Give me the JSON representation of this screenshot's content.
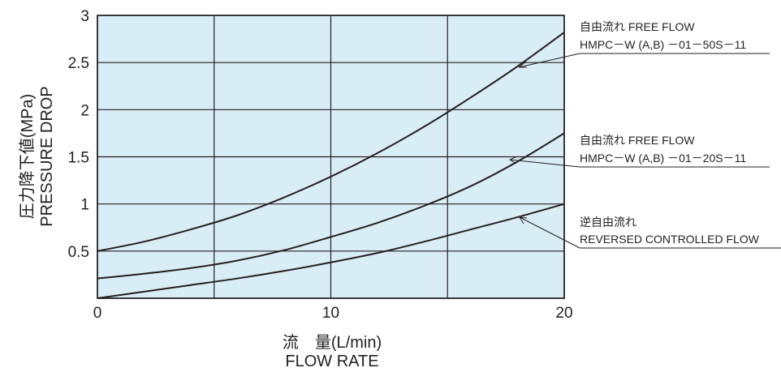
{
  "chart_data": {
    "type": "line",
    "x_label": "流　量(L/min)",
    "x_label_en": "FLOW RATE",
    "y_label": "圧力降下値(MPa)",
    "y_label_en": "PRESSURE DROP",
    "xlim": [
      0,
      20
    ],
    "ylim": [
      0,
      3
    ],
    "x_ticks": [
      "0",
      "10",
      "20"
    ],
    "x_tick_values": [
      0,
      10,
      20
    ],
    "y_ticks": [
      "0.5",
      "1",
      "1.5",
      "2",
      "2.5",
      "3"
    ],
    "y_tick_values": [
      0.5,
      1,
      1.5,
      2,
      2.5,
      3
    ],
    "x_gridlines": [
      5,
      10,
      15
    ],
    "y_gridlines": [
      0.5,
      1,
      1.5,
      2,
      2.5
    ],
    "grid": true,
    "plot_background": "#d9edf7",
    "line_color": "#231f20",
    "series": [
      {
        "label_line1": "自由流れ FREE FLOW",
        "label_line2": "HMPC－W (A,B) －01－50S－11",
        "x": [
          0,
          2,
          4,
          6,
          8,
          10,
          12,
          14,
          16,
          18,
          20
        ],
        "values": [
          0.5,
          0.6,
          0.73,
          0.88,
          1.07,
          1.29,
          1.54,
          1.82,
          2.13,
          2.46,
          2.82
        ]
      },
      {
        "label_line1": "自由流れ FREE FLOW",
        "label_line2": "HMPC－W (A,B) －01－20S－11",
        "x": [
          0,
          2,
          4,
          6,
          8,
          10,
          12,
          14,
          16,
          18,
          20
        ],
        "values": [
          0.21,
          0.26,
          0.32,
          0.4,
          0.51,
          0.65,
          0.8,
          0.98,
          1.19,
          1.45,
          1.75
        ]
      },
      {
        "label_line1": "逆自由流れ",
        "label_line2": "REVERSED CONTROLLED FLOW",
        "x": [
          0,
          2,
          4,
          6,
          8,
          10,
          12,
          14,
          16,
          18,
          20
        ],
        "values": [
          0.0,
          0.07,
          0.14,
          0.21,
          0.29,
          0.38,
          0.48,
          0.6,
          0.73,
          0.86,
          1.0
        ]
      }
    ]
  }
}
